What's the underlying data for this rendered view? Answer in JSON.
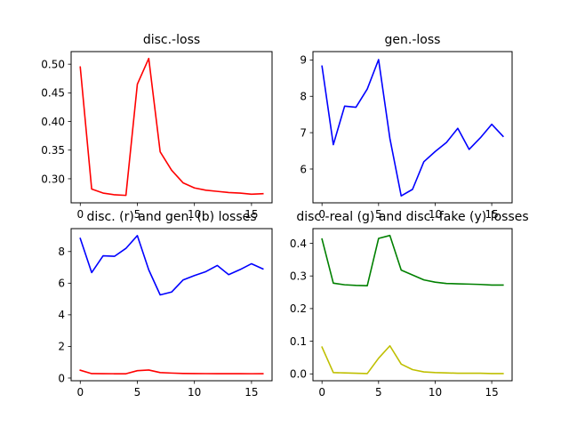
{
  "chart_data": [
    {
      "type": "line",
      "title": "disc.-loss",
      "xlim": [
        -0.8,
        16.8
      ],
      "ylim": [
        0.258,
        0.522
      ],
      "xticks": [
        0,
        5,
        10,
        15
      ],
      "yticks": [
        0.3,
        0.35,
        0.4,
        0.45,
        0.5
      ],
      "ytick_labels": [
        "0.30",
        "0.35",
        "0.40",
        "0.45",
        "0.50"
      ],
      "x": [
        0,
        1,
        2,
        3,
        4,
        5,
        6,
        7,
        8,
        9,
        10,
        11,
        12,
        13,
        14,
        15,
        16
      ],
      "series": [
        {
          "color": "#ff0000",
          "values": [
            0.495,
            0.282,
            0.275,
            0.272,
            0.271,
            0.465,
            0.51,
            0.347,
            0.315,
            0.293,
            0.284,
            0.28,
            0.278,
            0.276,
            0.275,
            0.273,
            0.274
          ]
        }
      ]
    },
    {
      "type": "line",
      "title": "gen.-loss",
      "xlim": [
        -0.8,
        16.8
      ],
      "ylim": [
        5.07,
        9.23
      ],
      "xticks": [
        0,
        5,
        10,
        15
      ],
      "yticks": [
        6,
        7,
        8,
        9
      ],
      "ytick_labels": [
        "6",
        "7",
        "8",
        "9"
      ],
      "x": [
        0,
        1,
        2,
        3,
        4,
        5,
        6,
        7,
        8,
        9,
        10,
        11,
        12,
        13,
        14,
        15,
        16
      ],
      "series": [
        {
          "color": "#0000ff",
          "values": [
            8.83,
            6.67,
            7.73,
            7.7,
            8.2,
            9.01,
            6.84,
            5.26,
            5.44,
            6.2,
            6.48,
            6.73,
            7.12,
            6.54,
            6.86,
            7.23,
            6.9
          ]
        }
      ]
    },
    {
      "type": "line",
      "title": "disc. (r) and gen. (b) losses",
      "xlim": [
        -0.8,
        16.8
      ],
      "ylim": [
        -0.17,
        9.45
      ],
      "xticks": [
        0,
        5,
        10,
        15
      ],
      "yticks": [
        0,
        2,
        4,
        6,
        8
      ],
      "ytick_labels": [
        "0",
        "2",
        "4",
        "6",
        "8"
      ],
      "x": [
        0,
        1,
        2,
        3,
        4,
        5,
        6,
        7,
        8,
        9,
        10,
        11,
        12,
        13,
        14,
        15,
        16
      ],
      "series": [
        {
          "color": "#0000ff",
          "values": [
            8.83,
            6.67,
            7.73,
            7.7,
            8.2,
            9.01,
            6.84,
            5.26,
            5.44,
            6.2,
            6.48,
            6.73,
            7.12,
            6.54,
            6.86,
            7.23,
            6.9
          ]
        },
        {
          "color": "#ff0000",
          "values": [
            0.495,
            0.282,
            0.275,
            0.272,
            0.271,
            0.465,
            0.51,
            0.347,
            0.315,
            0.293,
            0.284,
            0.28,
            0.278,
            0.276,
            0.275,
            0.273,
            0.274
          ]
        }
      ]
    },
    {
      "type": "line",
      "title": "disc.-real (g) and disc.-fake (y) losses",
      "xlim": [
        -0.8,
        16.8
      ],
      "ylim": [
        -0.021,
        0.445
      ],
      "xticks": [
        0,
        5,
        10,
        15
      ],
      "yticks": [
        0.0,
        0.1,
        0.2,
        0.3,
        0.4
      ],
      "ytick_labels": [
        "0.0",
        "0.1",
        "0.2",
        "0.3",
        "0.4"
      ],
      "x": [
        0,
        1,
        2,
        3,
        4,
        5,
        6,
        7,
        8,
        9,
        10,
        11,
        12,
        13,
        14,
        15,
        16
      ],
      "series": [
        {
          "color": "#008000",
          "values": [
            0.413,
            0.278,
            0.273,
            0.271,
            0.27,
            0.415,
            0.424,
            0.318,
            0.303,
            0.288,
            0.281,
            0.277,
            0.276,
            0.275,
            0.274,
            0.272,
            0.272
          ]
        },
        {
          "color": "#bfbf00",
          "values": [
            0.082,
            0.004,
            0.003,
            0.002,
            0.001,
            0.048,
            0.086,
            0.03,
            0.013,
            0.006,
            0.004,
            0.003,
            0.002,
            0.002,
            0.002,
            0.001,
            0.001
          ]
        }
      ]
    }
  ]
}
